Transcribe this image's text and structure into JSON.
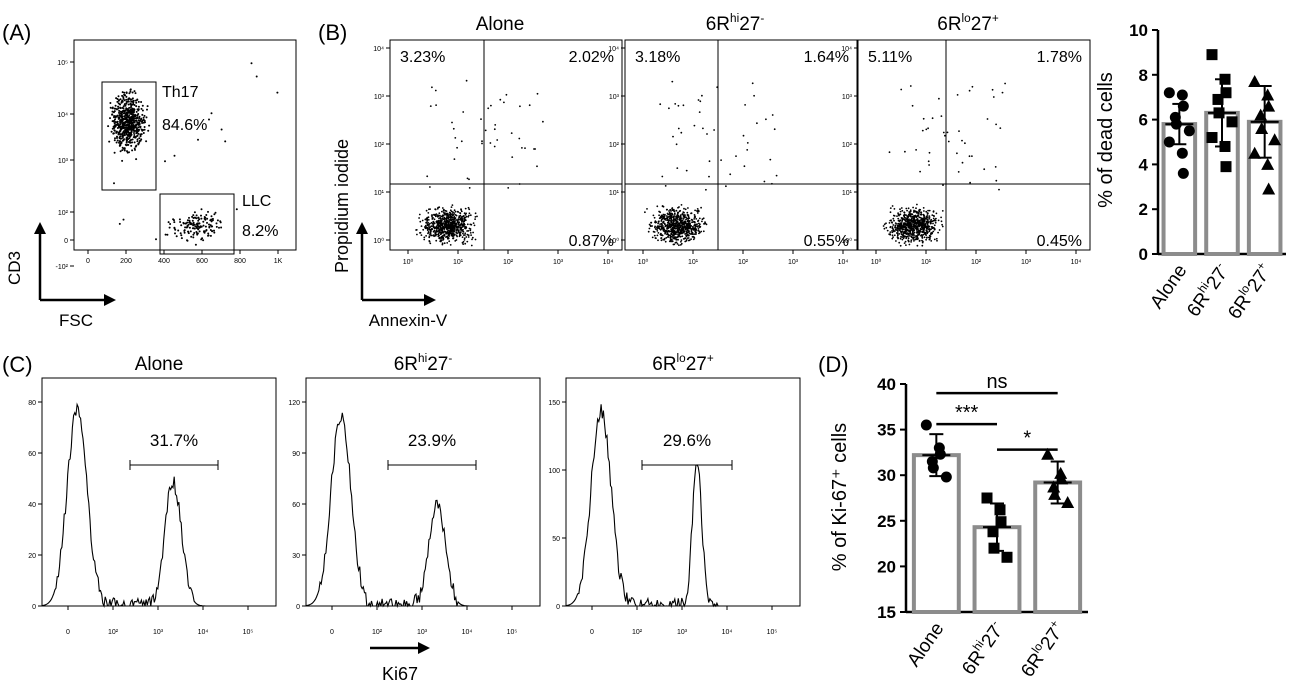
{
  "panel_labels": {
    "A": "(A)",
    "B": "(B)",
    "C": "(C)",
    "D": "(D)"
  },
  "panel_a": {
    "ylabel": "CD3",
    "xlabel": "FSC",
    "gate1_label": "Th17",
    "gate1_pct": "84.6%",
    "gate2_label": "LLC",
    "gate2_pct": "8.2%",
    "xticks": [
      "0",
      "200",
      "400",
      "600",
      "800",
      "1K"
    ],
    "yticks": [
      "-10²",
      "0",
      "10²",
      "10³",
      "10⁴",
      "10⁵"
    ]
  },
  "panel_b": {
    "ylabel": "Propidium iodide",
    "xlabel": "Annexin-V",
    "titles": [
      {
        "base": "Alone",
        "sup": "",
        "mid": "",
        "sup2": ""
      },
      {
        "base": "6R",
        "sup": "hi",
        "mid": "27",
        "sup2": "-"
      },
      {
        "base": "6R",
        "sup": "lo",
        "mid": "27",
        "sup2": "+"
      }
    ],
    "quadrants": [
      {
        "ul": "3.23%",
        "ur": "2.02%",
        "lr": "0.87%"
      },
      {
        "ul": "3.18%",
        "ur": "1.64%",
        "lr": "0.55%"
      },
      {
        "ul": "5.11%",
        "ur": "1.78%",
        "lr": "0.45%"
      }
    ],
    "xticks": [
      "10⁰",
      "10¹",
      "10²",
      "10³",
      "10⁴"
    ],
    "yticks": [
      "10⁰",
      "10¹",
      "10²",
      "10³",
      "10⁴"
    ]
  },
  "panel_c": {
    "xlabel": "Ki67",
    "titles": [
      {
        "base": "Alone",
        "sup": "",
        "mid": "",
        "sup2": ""
      },
      {
        "base": "6R",
        "sup": "hi",
        "mid": "27",
        "sup2": "-"
      },
      {
        "base": "6R",
        "sup": "lo",
        "mid": "27",
        "sup2": "+"
      }
    ],
    "gate_pct": [
      "31.7%",
      "23.9%",
      "29.6%"
    ],
    "xticks": [
      "0",
      "10²",
      "10³",
      "10⁴",
      "10⁵"
    ],
    "yticks": [
      [
        "0",
        "20",
        "40",
        "60",
        "80"
      ],
      [
        "0",
        "30",
        "60",
        "90",
        "120"
      ],
      [
        "0",
        "50",
        "100",
        "150"
      ]
    ]
  },
  "chart_data": [
    {
      "type": "bar",
      "ylabel": "% of dead cells",
      "ylim": [
        0,
        10
      ],
      "yticks": [
        "0",
        "2",
        "4",
        "6",
        "8",
        "10"
      ],
      "categories": [
        {
          "base": "Alone",
          "sup": "",
          "mid": "",
          "sup2": ""
        },
        {
          "base": "6R",
          "sup": "hi",
          "mid": "27",
          "sup2": "-"
        },
        {
          "base": "6R",
          "sup": "lo",
          "mid": "27",
          "sup2": "+"
        }
      ],
      "values": [
        5.8,
        6.3,
        5.9
      ],
      "errors": [
        0.9,
        1.5,
        1.6
      ],
      "markers": [
        "circle",
        "square",
        "triangle"
      ],
      "points": [
        [
          7.2,
          7.1,
          6.6,
          6.1,
          5.8,
          5.5,
          5.0,
          4.5,
          3.6
        ],
        [
          8.9,
          7.8,
          7.2,
          6.9,
          6.3,
          5.9,
          5.2,
          4.8,
          3.9
        ],
        [
          7.7,
          7.1,
          6.6,
          6.2,
          5.6,
          5.1,
          4.5,
          4.0,
          2.9
        ]
      ]
    },
    {
      "type": "bar",
      "ylabel": "% of Ki-67⁺ cells",
      "ylim": [
        15,
        40
      ],
      "yticks": [
        "15",
        "20",
        "25",
        "30",
        "35",
        "40"
      ],
      "categories": [
        {
          "base": "Alone",
          "sup": "",
          "mid": "",
          "sup2": ""
        },
        {
          "base": "6R",
          "sup": "hi",
          "mid": "27",
          "sup2": "-"
        },
        {
          "base": "6R",
          "sup": "lo",
          "mid": "27",
          "sup2": "+"
        }
      ],
      "values": [
        32.2,
        24.3,
        29.2
      ],
      "errors": [
        2.3,
        2.6,
        2.3
      ],
      "markers": [
        "circle",
        "square",
        "triangle"
      ],
      "points": [
        [
          35.5,
          33.0,
          32.3,
          31.5,
          30.8,
          29.8
        ],
        [
          27.5,
          26.2,
          24.9,
          23.8,
          22.0,
          21.0
        ],
        [
          32.3,
          30.2,
          29.6,
          28.7,
          27.9,
          27.0
        ]
      ],
      "significance": [
        {
          "from": 0,
          "to": 1,
          "label": "***"
        },
        {
          "from": 0,
          "to": 2,
          "label": "ns"
        },
        {
          "from": 1,
          "to": 2,
          "label": "*"
        }
      ]
    }
  ]
}
